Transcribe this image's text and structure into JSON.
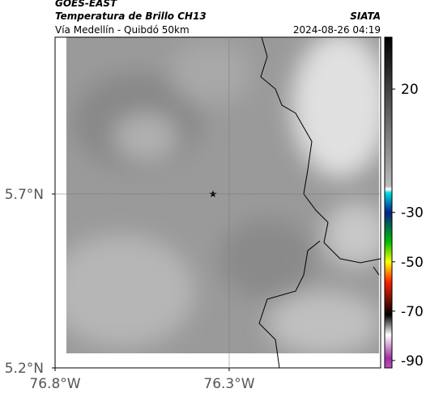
{
  "header": {
    "title": "GOES-EAST",
    "subtitle": "Temperatura de Brillo CH13",
    "source": "SIATA",
    "route": "Vía Medellín - Quibdó 50km",
    "timestamp": "2024-08-26 04:19"
  },
  "map": {
    "xlim": [
      -76.8,
      -75.865
    ],
    "ylim": [
      5.2,
      6.151
    ],
    "xticks": [
      {
        "value": -76.8,
        "label": "76.8°W"
      },
      {
        "value": -76.3,
        "label": "76.3°W"
      }
    ],
    "yticks": [
      {
        "value": 5.7,
        "label": "5.7°N"
      },
      {
        "value": 5.2,
        "label": "5.2°N"
      }
    ]
  },
  "colorbar": {
    "lim": [
      -93,
      41
    ],
    "ticks": [
      20,
      -30,
      -50,
      -70,
      -90
    ]
  }
}
